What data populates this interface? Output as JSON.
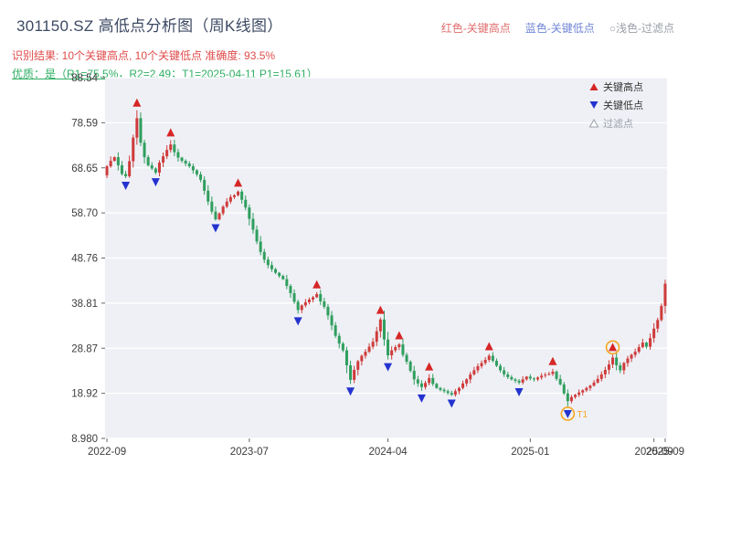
{
  "header": {
    "title": "301150.SZ 高低点分析图（周K线图）",
    "legend_top": {
      "high_label": "红色-关键高点",
      "low_label": "蓝色-关键低点",
      "filtered_label": "○浅色-过滤点"
    },
    "result_line": "识别结果: 10个关键高点, 10个关键低点  准确度: 93.5%",
    "quality_line": "优质：是（R1=75.5%，R2=2.49；T1=2025-04-11 P1=15.61）"
  },
  "colors": {
    "title": "#3c4963",
    "result_text": "#e04b4b",
    "quality_text": "#2fae63",
    "legend_red": "#e06c6c",
    "legend_blue": "#6f86d6",
    "legend_gray": "#9aa0a8",
    "plot_bg": "#eef0f5",
    "grid": "#ffffff",
    "axis_text": "#3c3c3c",
    "up_candle": "#cf3b3b",
    "down_candle": "#2f9e5e",
    "key_high": "#d62626",
    "key_low": "#2433cf",
    "filtered": "#b9bdc9",
    "circle": "#f5a623"
  },
  "chart_data": {
    "type": "candlestick",
    "symbol": "301150.SZ",
    "period": "weekly",
    "title": "301150.SZ 高低点分析图（周K线图）",
    "ylim": [
      8.98,
      88.54
    ],
    "grid": "horizontal",
    "legend_position": "top-right-inside",
    "y_ticks": [
      {
        "value": 8.98,
        "label": "8.980"
      },
      {
        "value": 18.92,
        "label": "18.92"
      },
      {
        "value": 28.87,
        "label": "28.87"
      },
      {
        "value": 38.81,
        "label": "38.81"
      },
      {
        "value": 48.76,
        "label": "48.76"
      },
      {
        "value": 58.7,
        "label": "58.70"
      },
      {
        "value": 68.65,
        "label": "68.65"
      },
      {
        "value": 78.59,
        "label": "78.59"
      },
      {
        "value": 88.54,
        "label": "88.54"
      }
    ],
    "x_ticks": [
      {
        "index": 0,
        "label": "2022-09"
      },
      {
        "index": 38,
        "label": "2023-07"
      },
      {
        "index": 75,
        "label": "2024-04"
      },
      {
        "index": 113,
        "label": "2025-01"
      },
      {
        "index": 146,
        "label": "2025-09"
      },
      {
        "index": 149,
        "label": "2025-09"
      }
    ],
    "first_open": 67.0,
    "closes": [
      69.0,
      70.2,
      71.0,
      69.2,
      67.3,
      66.8,
      70.1,
      75.3,
      79.6,
      74.2,
      71.0,
      69.2,
      68.5,
      67.6,
      69.8,
      71.2,
      72.6,
      73.8,
      72.1,
      70.9,
      70.2,
      69.6,
      69.0,
      68.1,
      67.2,
      66.0,
      63.6,
      61.2,
      59.0,
      57.3,
      58.6,
      60.1,
      61.2,
      62.2,
      62.6,
      63.4,
      61.6,
      59.9,
      57.4,
      55.0,
      52.4,
      50.1,
      48.4,
      47.2,
      46.3,
      45.5,
      44.8,
      44.1,
      42.6,
      41.0,
      39.1,
      37.3,
      38.3,
      39.0,
      39.6,
      40.1,
      40.8,
      39.2,
      38.0,
      36.1,
      33.9,
      31.6,
      29.9,
      28.4,
      25.1,
      21.9,
      24.1,
      26.0,
      27.2,
      28.1,
      29.2,
      30.3,
      32.6,
      35.2,
      30.8,
      27.3,
      28.4,
      29.1,
      29.7,
      27.4,
      25.9,
      23.9,
      22.0,
      21.1,
      20.3,
      21.2,
      22.3,
      21.0,
      20.1,
      19.7,
      19.4,
      19.0,
      18.6,
      19.4,
      20.1,
      21.1,
      22.0,
      23.1,
      24.0,
      24.9,
      25.6,
      26.3,
      27.2,
      26.1,
      25.0,
      24.0,
      23.1,
      22.5,
      22.0,
      21.7,
      21.3,
      22.0,
      22.6,
      22.2,
      22.0,
      22.4,
      22.8,
      23.0,
      23.2,
      23.7,
      22.1,
      20.9,
      18.9,
      17.2,
      18.1,
      18.6,
      19.1,
      19.6,
      20.1,
      20.6,
      21.3,
      22.1,
      23.1,
      24.1,
      25.3,
      26.8,
      25.1,
      24.0,
      25.6,
      26.6,
      27.4,
      28.1,
      29.1,
      30.1,
      29.2,
      31.1,
      33.2,
      35.1,
      38.2,
      43.1
    ],
    "key_highs": [
      8,
      17,
      35,
      56,
      73,
      78,
      86,
      102,
      119,
      135
    ],
    "key_lows": [
      5,
      13,
      29,
      51,
      65,
      75,
      84,
      92,
      110,
      123
    ],
    "circled_points": [
      {
        "index": 123,
        "kind": "low",
        "label": "T1"
      },
      {
        "index": 135,
        "kind": "high",
        "label": ""
      }
    ],
    "annotations": {
      "T1_date": "2025-04-11",
      "P1_price": 15.61,
      "key_high_count": 10,
      "key_low_count": 10,
      "accuracy": "93.5%"
    },
    "legend": [
      {
        "label": "关键高点",
        "marker": "up"
      },
      {
        "label": "关键低点",
        "marker": "down"
      },
      {
        "label": "过滤点",
        "marker": "hollow"
      }
    ]
  }
}
